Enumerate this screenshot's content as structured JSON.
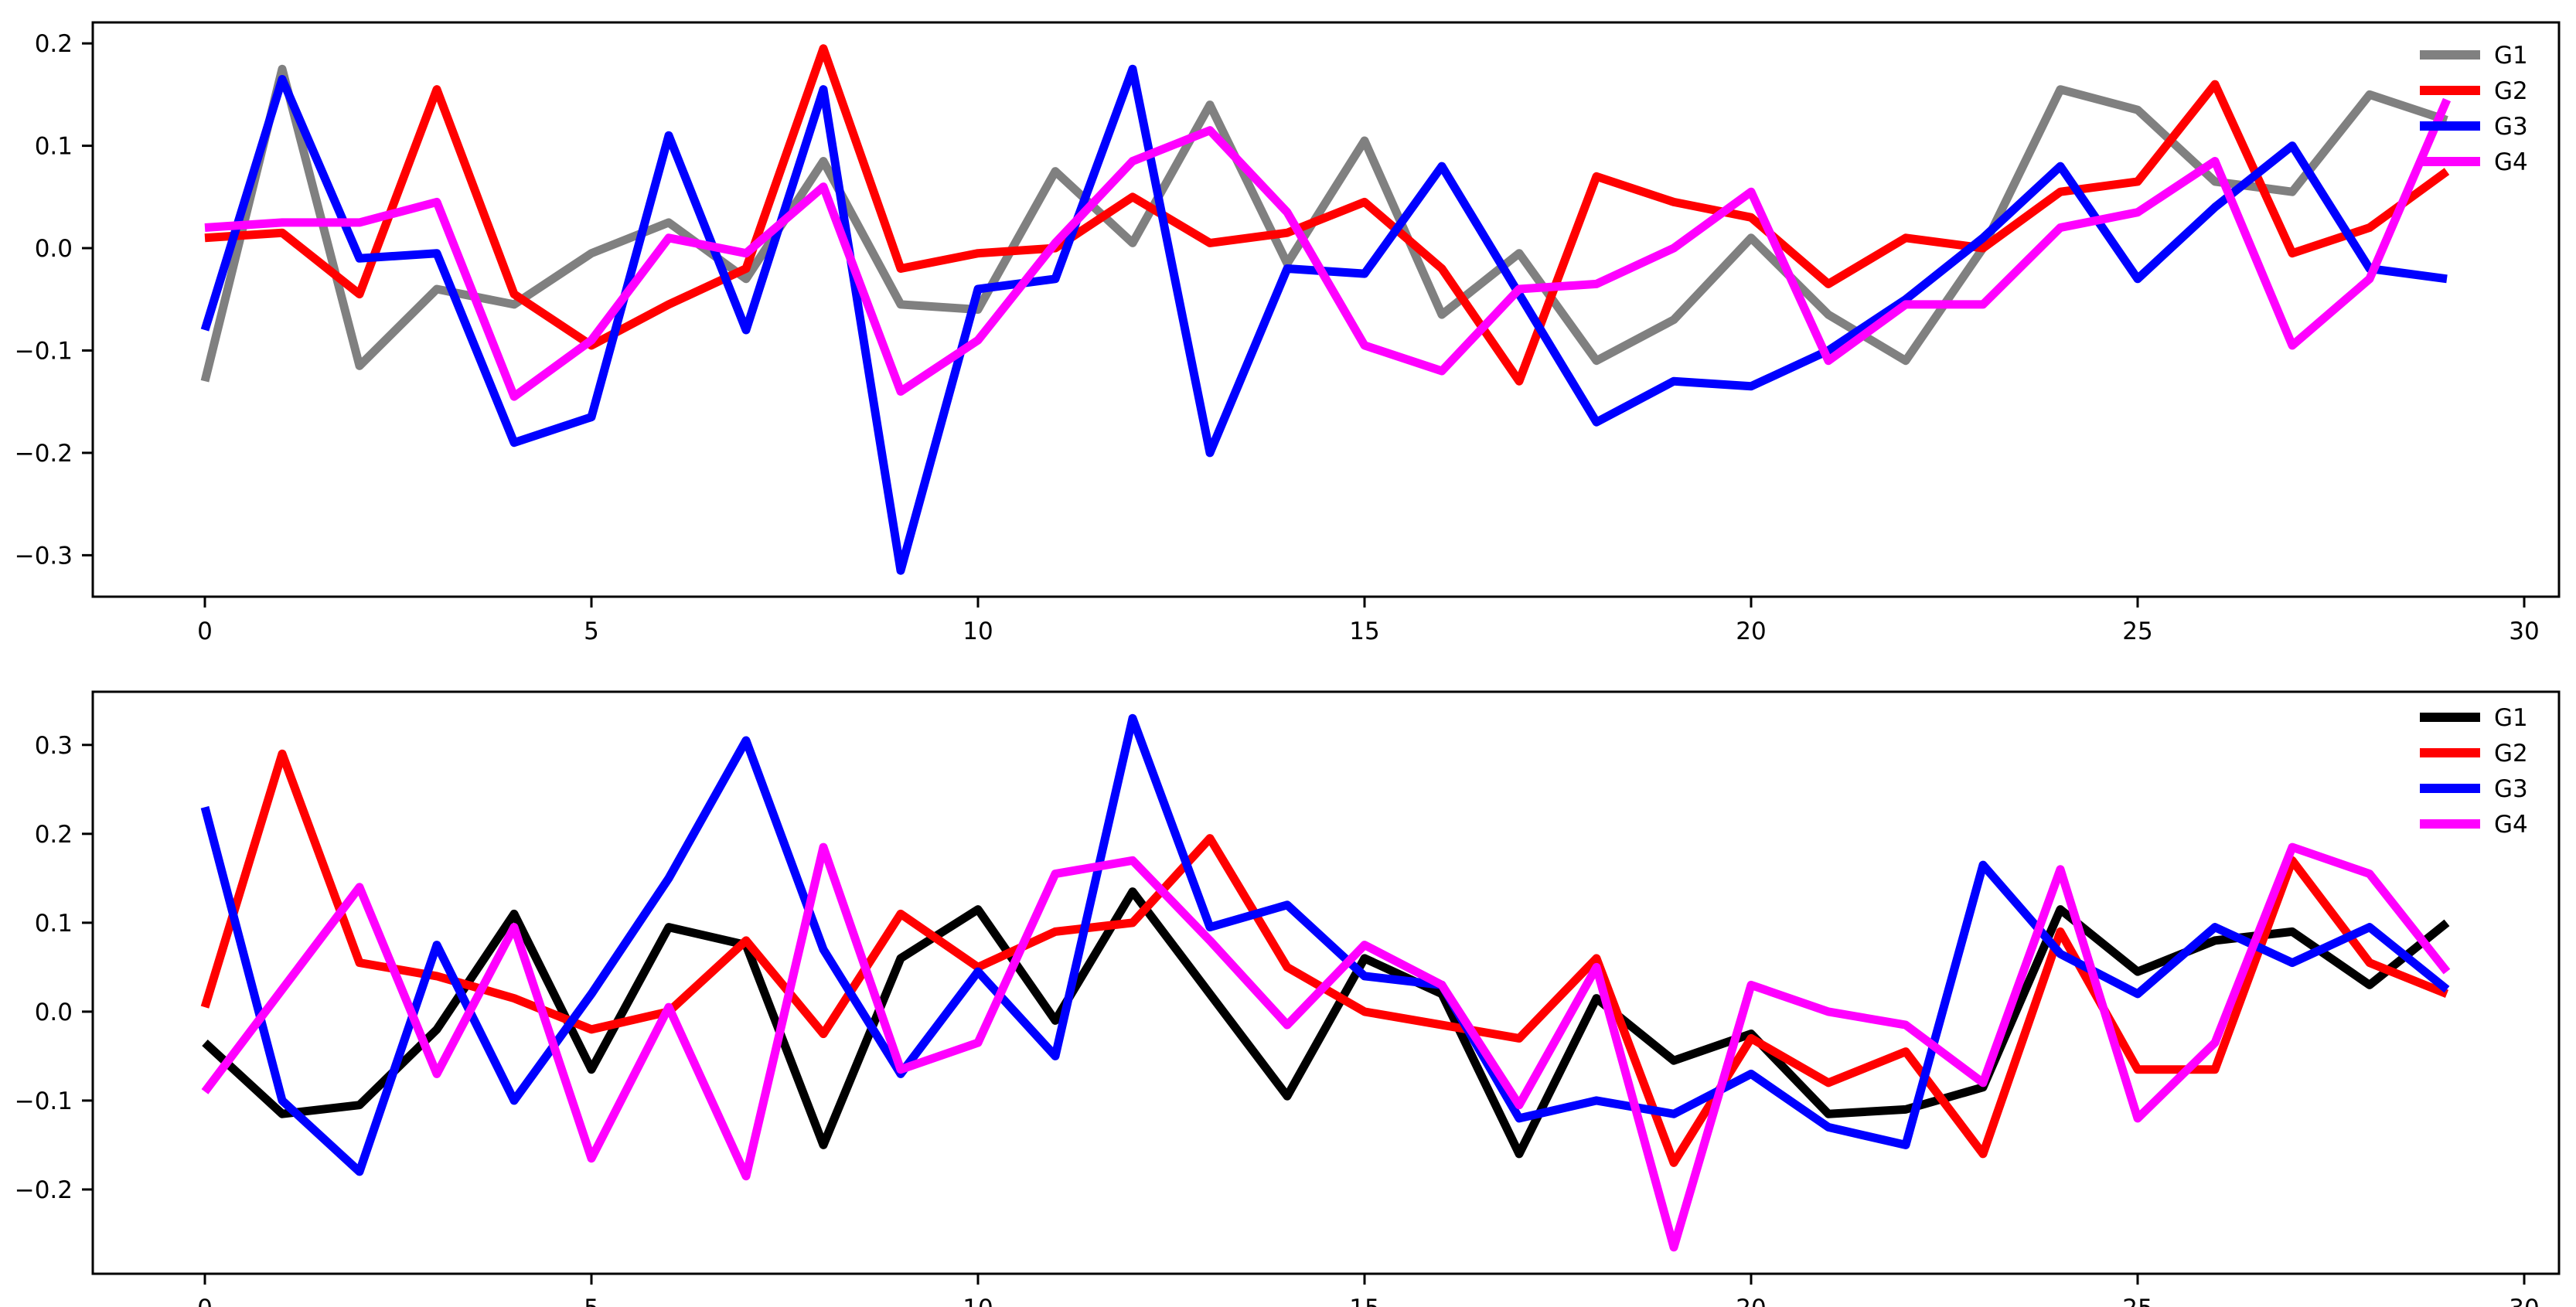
{
  "figure": {
    "background": "#ffffff",
    "frame_color": "#000000",
    "description": "Two stacked line charts (matplotlib style), each with four series G1-G4"
  },
  "chart_data": [
    {
      "type": "line",
      "title": "",
      "xlabel": "",
      "ylabel": "",
      "grid": false,
      "legend_position": "upper right",
      "line_width": 11,
      "x": [
        0,
        1,
        2,
        3,
        4,
        5,
        6,
        7,
        8,
        9,
        10,
        11,
        12,
        13,
        14,
        15,
        16,
        17,
        18,
        19,
        20,
        21,
        22,
        23,
        24,
        25,
        26,
        27,
        28,
        29
      ],
      "xlim": [
        -1.45,
        30.45
      ],
      "ylim": [
        -0.3405,
        0.2205
      ],
      "xticks": [
        0,
        5,
        10,
        15,
        20,
        25,
        30
      ],
      "xtick_labels": [
        "0",
        "5",
        "10",
        "15",
        "20",
        "25",
        "30"
      ],
      "yticks": [
        0.2,
        0.1,
        0.0,
        -0.1,
        -0.2,
        -0.3
      ],
      "ytick_labels": [
        "0.2",
        "0.1",
        "0.0",
        "−0.1",
        "−0.2",
        "−0.3"
      ],
      "series": [
        {
          "name": "G1",
          "color": "#808080",
          "values": [
            -0.13,
            0.175,
            -0.115,
            -0.04,
            -0.055,
            -0.005,
            0.025,
            -0.03,
            0.085,
            -0.055,
            -0.06,
            0.075,
            0.005,
            0.14,
            -0.015,
            0.105,
            -0.065,
            -0.005,
            -0.11,
            -0.07,
            0.01,
            -0.065,
            -0.11,
            0.0,
            0.155,
            0.135,
            0.065,
            0.055,
            0.15,
            0.125
          ]
        },
        {
          "name": "G2",
          "color": "#ff0000",
          "values": [
            0.01,
            0.015,
            -0.045,
            0.155,
            -0.045,
            -0.095,
            -0.055,
            -0.02,
            0.195,
            -0.02,
            -0.005,
            0.0,
            0.05,
            0.005,
            0.015,
            0.045,
            -0.02,
            -0.13,
            0.07,
            0.045,
            0.03,
            -0.035,
            0.01,
            0.0,
            0.055,
            0.065,
            0.16,
            -0.005,
            0.02,
            0.075
          ]
        },
        {
          "name": "G3",
          "color": "#0000ff",
          "values": [
            -0.08,
            0.165,
            -0.01,
            -0.005,
            -0.19,
            -0.165,
            0.11,
            -0.08,
            0.155,
            -0.315,
            -0.04,
            -0.03,
            0.175,
            -0.2,
            -0.02,
            -0.025,
            0.08,
            -0.045,
            -0.17,
            -0.13,
            -0.135,
            -0.1,
            -0.05,
            0.01,
            0.08,
            -0.03,
            0.04,
            0.1,
            -0.02,
            -0.03
          ]
        },
        {
          "name": "G4",
          "color": "#ff00ff",
          "values": [
            0.02,
            0.025,
            0.025,
            0.045,
            -0.145,
            -0.09,
            0.01,
            -0.005,
            0.06,
            -0.14,
            -0.09,
            0.005,
            0.085,
            0.115,
            0.035,
            -0.095,
            -0.12,
            -0.04,
            -0.035,
            0.0,
            0.055,
            -0.11,
            -0.055,
            -0.055,
            0.02,
            0.035,
            0.085,
            -0.095,
            -0.03,
            0.145
          ]
        }
      ]
    },
    {
      "type": "line",
      "title": "",
      "xlabel": "",
      "ylabel": "",
      "grid": false,
      "legend_position": "upper right",
      "line_width": 11,
      "x": [
        0,
        1,
        2,
        3,
        4,
        5,
        6,
        7,
        8,
        9,
        10,
        11,
        12,
        13,
        14,
        15,
        16,
        17,
        18,
        19,
        20,
        21,
        22,
        23,
        24,
        25,
        26,
        27,
        28,
        29
      ],
      "xlim": [
        -1.45,
        30.45
      ],
      "ylim": [
        -0.2948,
        0.3598
      ],
      "xticks": [
        0,
        5,
        10,
        15,
        20,
        25,
        30
      ],
      "xtick_labels": [
        "0",
        "5",
        "10",
        "15",
        "20",
        "25",
        "30"
      ],
      "yticks": [
        0.3,
        0.2,
        0.1,
        0.0,
        -0.1,
        -0.2
      ],
      "ytick_labels": [
        "0.3",
        "0.2",
        "0.1",
        "0.0",
        "−0.1",
        "−0.2"
      ],
      "series": [
        {
          "name": "G1",
          "color": "#000000",
          "values": [
            -0.035,
            -0.115,
            -0.105,
            -0.02,
            0.11,
            -0.065,
            0.095,
            0.075,
            -0.15,
            0.06,
            0.115,
            -0.01,
            0.135,
            0.02,
            -0.095,
            0.06,
            0.02,
            -0.16,
            0.015,
            -0.055,
            -0.025,
            -0.115,
            -0.11,
            -0.085,
            0.115,
            0.045,
            0.08,
            0.09,
            0.03,
            0.1
          ]
        },
        {
          "name": "G2",
          "color": "#ff0000",
          "values": [
            0.005,
            0.29,
            0.055,
            0.04,
            0.015,
            -0.02,
            0.0,
            0.08,
            -0.025,
            0.11,
            0.05,
            0.09,
            0.1,
            0.195,
            0.05,
            0.0,
            -0.015,
            -0.03,
            0.06,
            -0.17,
            -0.03,
            -0.08,
            -0.045,
            -0.16,
            0.09,
            -0.065,
            -0.065,
            0.17,
            0.055,
            0.02
          ]
        },
        {
          "name": "G3",
          "color": "#0000ff",
          "values": [
            0.23,
            -0.1,
            -0.18,
            0.075,
            -0.1,
            0.02,
            0.15,
            0.305,
            0.07,
            -0.07,
            0.045,
            -0.05,
            0.33,
            0.095,
            0.12,
            0.04,
            0.03,
            -0.12,
            -0.1,
            -0.115,
            -0.07,
            -0.13,
            -0.15,
            0.165,
            0.065,
            0.02,
            0.095,
            0.055,
            0.095,
            0.025
          ]
        },
        {
          "name": "G4",
          "color": "#ff00ff",
          "values": [
            -0.09,
            0.025,
            0.14,
            -0.07,
            0.095,
            -0.165,
            0.005,
            -0.185,
            0.185,
            -0.065,
            -0.035,
            0.155,
            0.17,
            0.08,
            -0.015,
            0.075,
            0.03,
            -0.105,
            0.05,
            -0.265,
            0.03,
            0.0,
            -0.015,
            -0.08,
            0.16,
            -0.12,
            -0.035,
            0.185,
            0.155,
            0.045
          ]
        }
      ]
    }
  ],
  "legend": {
    "labels": [
      "G1",
      "G2",
      "G3",
      "G4"
    ]
  }
}
